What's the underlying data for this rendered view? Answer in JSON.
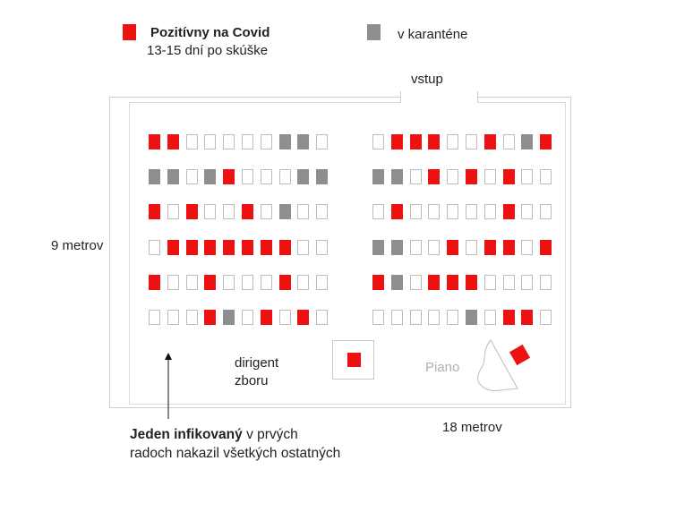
{
  "legend": {
    "positive_title": "Pozitívny na Covid",
    "positive_subtitle": "13-15 dní po skúške",
    "quarantine_label": "v karanténe",
    "positive_color": "#ee1111",
    "quarantine_color": "#8e8e8e"
  },
  "labels": {
    "entrance": "vstup",
    "height": "9 metrov",
    "width": "18 metrov",
    "conductor_line1": "dirigent",
    "conductor_line2": "zboru",
    "piano": "Piano"
  },
  "caption": {
    "bold": "Jeden infikovaný",
    "rest_line1": " v prvých",
    "line2": "radoch nakazil všetkých ostatných"
  },
  "seating": {
    "legend_codes": {
      "P": "positive",
      "Q": "quarantine",
      "E": "empty"
    },
    "left_block": [
      [
        "P",
        "P",
        "E",
        "E",
        "E",
        "E",
        "E",
        "Q",
        "Q",
        "E"
      ],
      [
        "Q",
        "Q",
        "E",
        "Q",
        "P",
        "E",
        "E",
        "E",
        "Q",
        "Q"
      ],
      [
        "P",
        "E",
        "P",
        "E",
        "E",
        "P",
        "E",
        "Q",
        "E",
        "E"
      ],
      [
        "E",
        "P",
        "P",
        "P",
        "P",
        "P",
        "P",
        "P",
        "E",
        "E"
      ],
      [
        "P",
        "E",
        "E",
        "P",
        "E",
        "E",
        "E",
        "P",
        "E",
        "E"
      ],
      [
        "E",
        "E",
        "E",
        "P",
        "Q",
        "E",
        "P",
        "E",
        "P",
        "E"
      ]
    ],
    "right_block": [
      [
        "E",
        "P",
        "P",
        "P",
        "E",
        "E",
        "P",
        "E",
        "Q",
        "P"
      ],
      [
        "Q",
        "Q",
        "E",
        "P",
        "E",
        "P",
        "E",
        "P",
        "E",
        "E"
      ],
      [
        "E",
        "P",
        "E",
        "E",
        "E",
        "E",
        "E",
        "P",
        "E",
        "E"
      ],
      [
        "Q",
        "Q",
        "E",
        "E",
        "P",
        "E",
        "P",
        "P",
        "E",
        "P"
      ],
      [
        "P",
        "Q",
        "E",
        "P",
        "P",
        "P",
        "E",
        "E",
        "E",
        "E"
      ],
      [
        "E",
        "E",
        "E",
        "E",
        "E",
        "Q",
        "E",
        "P",
        "P",
        "E"
      ]
    ]
  }
}
